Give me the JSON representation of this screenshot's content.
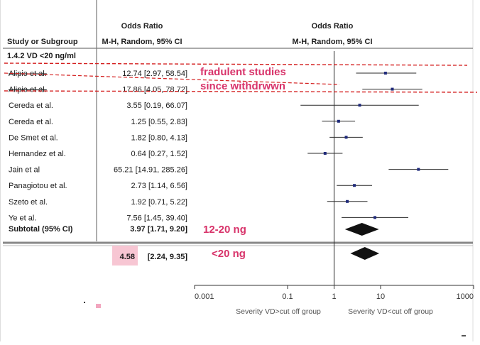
{
  "chart_data": {
    "type": "forest",
    "header": {
      "col_study": "Study or Subgroup",
      "col_or_title": "Odds Ratio",
      "col_or_sub": "M-H, Random, 95% CI",
      "plot_title": "Odds Ratio",
      "plot_sub": "M-H, Random, 95% CI"
    },
    "subgroup_label": "1.4.2 VD <20 ng/ml",
    "studies": [
      {
        "study": "Alipio et al.",
        "ci_text": "12.74 [2.97, 58.54]",
        "or": 12.74,
        "lo": 2.97,
        "hi": 58.54,
        "struck": true
      },
      {
        "study": "Alipio et al.",
        "ci_text": "17.86 [4.05, 78.72]",
        "or": 17.86,
        "lo": 4.05,
        "hi": 78.72,
        "struck": true
      },
      {
        "study": "Cereda et al.",
        "ci_text": "3.55 [0.19, 66.07]",
        "or": 3.55,
        "lo": 0.19,
        "hi": 66.07,
        "struck": false
      },
      {
        "study": "Cereda et al.",
        "ci_text": "1.25 [0.55, 2.83]",
        "or": 1.25,
        "lo": 0.55,
        "hi": 2.83,
        "struck": false
      },
      {
        "study": "De Smet et al.",
        "ci_text": "1.82 [0.80, 4.13]",
        "or": 1.82,
        "lo": 0.8,
        "hi": 4.13,
        "struck": false
      },
      {
        "study": "Hernandez et al.",
        "ci_text": "0.64 [0.27, 1.52]",
        "or": 0.64,
        "lo": 0.27,
        "hi": 1.52,
        "struck": false
      },
      {
        "study": "Jain et al",
        "ci_text": "65.21 [14.91, 285.26]",
        "or": 65.21,
        "lo": 14.91,
        "hi": 285.26,
        "struck": false
      },
      {
        "study": "Panagiotou et al.",
        "ci_text": "2.73 [1.14, 6.56]",
        "or": 2.73,
        "lo": 1.14,
        "hi": 6.56,
        "struck": false
      },
      {
        "study": "Szeto et al.",
        "ci_text": "1.92 [0.71, 5.22]",
        "or": 1.92,
        "lo": 0.71,
        "hi": 5.22,
        "struck": false
      },
      {
        "study": "Ye et al.",
        "ci_text": "7.56 [1.45, 39.40]",
        "or": 7.56,
        "lo": 1.45,
        "hi": 39.4,
        "struck": false
      }
    ],
    "subtotal": {
      "label": "Subtotal (95% CI)",
      "ci_text": "3.97 [1.71, 9.20]",
      "or": 3.97,
      "lo": 1.71,
      "hi": 9.2
    },
    "overall": {
      "or_text": "4.58",
      "ci_rest": "[2.24, 9.35]",
      "or": 4.58,
      "lo": 2.24,
      "hi": 9.35
    },
    "x_axis": {
      "scale": "log",
      "range": [
        0.001,
        1000
      ],
      "ticks": [
        0.001,
        0.1,
        1,
        10,
        1000
      ],
      "tick_labels": [
        "0.001",
        "0.1",
        "1",
        "10",
        "1000"
      ],
      "left_label": "Severity VD>cut off group",
      "right_label": "Severity VD<cut off group"
    },
    "annotations": {
      "withdrawn_line1": "fradulent studies",
      "withdrawn_line2": "since withdrwwn",
      "subtotal_note": "12-20 ng",
      "overall_note": "<20 ng"
    },
    "colors": {
      "annotation": "#d8336a",
      "highlight": "#f7c6d3",
      "point": "#1f2a7a",
      "strike": "#d42020"
    }
  }
}
